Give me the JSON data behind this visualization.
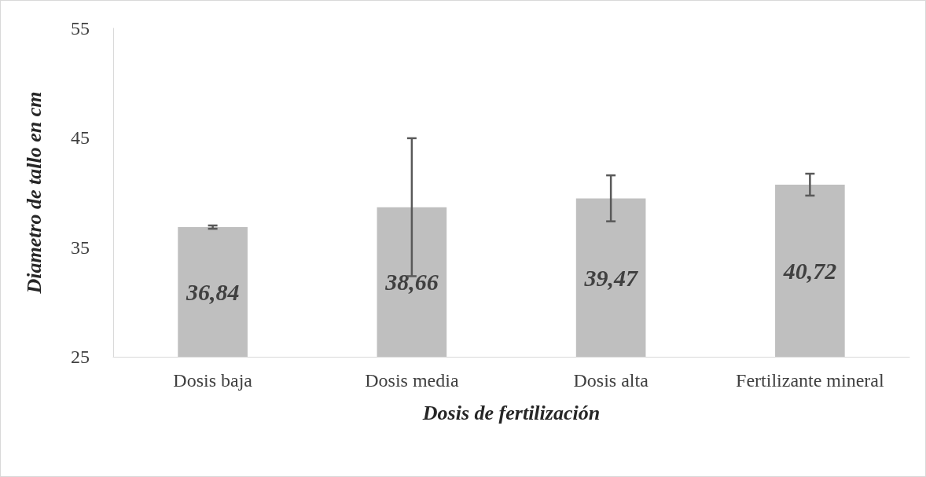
{
  "chart_data": {
    "type": "bar",
    "xlabel": "Dosis de fertilización",
    "ylabel": "Diametro de tallo en cm",
    "categories": [
      "Dosis baja",
      "Dosis media",
      "Dosis alta",
      "Fertilizante mineral"
    ],
    "values": [
      36.84,
      38.66,
      39.47,
      40.72
    ],
    "errors": [
      0.15,
      6.3,
      2.1,
      1.0
    ],
    "color": "#bfbfbf",
    "value_labels": [
      "36,84",
      "38,66",
      "39,47",
      "40,72"
    ],
    "ylim": [
      25,
      55
    ],
    "yticks": [
      25,
      35,
      45,
      55
    ],
    "grid": false
  }
}
